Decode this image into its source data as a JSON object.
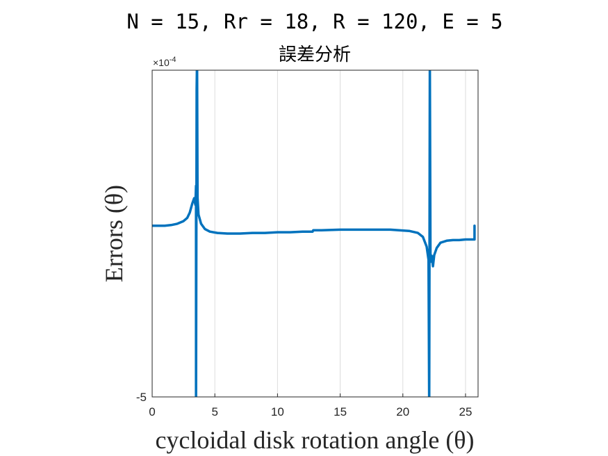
{
  "chart_data": {
    "type": "line",
    "title": "N = 15, Rr = 18, R = 120, E = 5",
    "subtitle": "誤差分析",
    "xlabel": "cycloidal disk rotation angle (θ)",
    "ylabel": "Errors (θ)",
    "y_exponent_label": "×10^-4",
    "xlim": [
      0,
      26
    ],
    "ylim": [
      -5,
      0
    ],
    "x_ticks": [
      0,
      5,
      10,
      15,
      20,
      25
    ],
    "x_tick_labels": [
      "0",
      "5",
      "10",
      "15",
      "20",
      "25"
    ],
    "y_tick_labels": [
      "-5"
    ],
    "grid": "x-only",
    "color": "#0072BD",
    "series": [
      {
        "x": [
          0,
          0.5,
          1,
          1.5,
          2,
          2.5,
          2.8,
          3.0,
          3.2,
          3.35,
          3.45,
          3.5,
          3.5,
          3.55,
          3.58,
          3.62,
          3.7,
          3.9,
          4.2,
          4.6,
          5.2,
          6,
          7,
          8,
          9,
          10,
          11,
          12,
          12.8,
          12.85,
          13.5,
          15,
          17,
          19,
          20.5,
          21.2,
          21.6,
          21.9,
          22.05,
          22.1,
          22.15,
          22.2,
          22.25,
          22.3,
          22.4,
          22.5,
          22.7,
          23,
          23.5,
          24,
          24.5,
          25,
          25.5,
          25.7,
          25.72,
          25.72
        ],
        "y": [
          -2.38,
          -2.38,
          -2.38,
          -2.37,
          -2.35,
          -2.31,
          -2.26,
          -2.18,
          -2.04,
          -1.96,
          -2.06,
          -1.77,
          -5.2,
          -0.3,
          0.2,
          -1.95,
          -2.21,
          -2.35,
          -2.43,
          -2.47,
          -2.49,
          -2.5,
          -2.5,
          -2.49,
          -2.49,
          -2.48,
          -2.48,
          -2.47,
          -2.47,
          -2.45,
          -2.45,
          -2.44,
          -2.44,
          -2.44,
          -2.46,
          -2.49,
          -2.55,
          -2.7,
          -2.9,
          -5.2,
          0.2,
          -2.8,
          -2.93,
          -2.84,
          -3.0,
          -2.83,
          -2.72,
          -2.64,
          -2.61,
          -2.6,
          -2.6,
          -2.59,
          -2.59,
          -2.59,
          -2.59,
          -2.38
        ]
      }
    ]
  }
}
